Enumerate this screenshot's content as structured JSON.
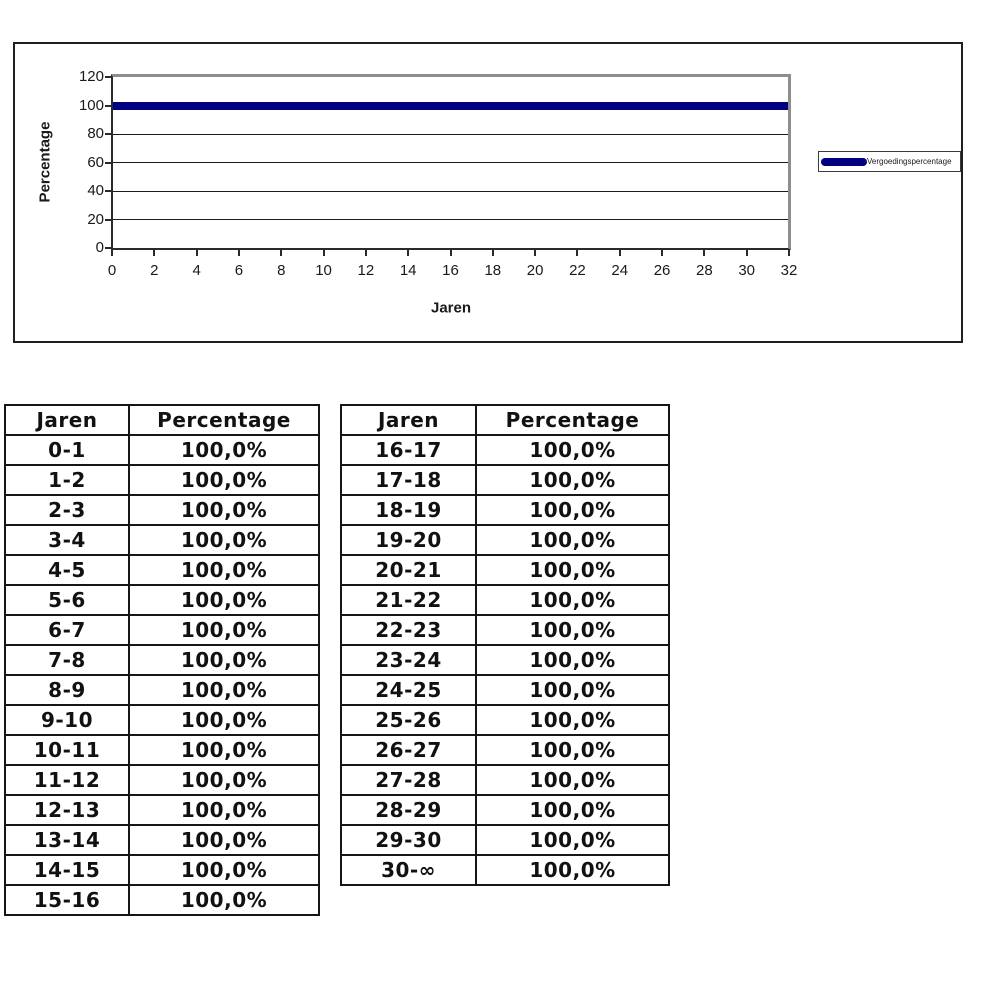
{
  "chart": {
    "legend_label": "Vergoedingspercentage",
    "series_color": "#000080",
    "frame_border_color": "#1f1f1f",
    "plot_shadow_border_color": "#8e8e8e"
  },
  "chart_data": {
    "type": "line",
    "title": "",
    "xlabel": "Jaren",
    "ylabel": "Percentage",
    "xlim": [
      0,
      32
    ],
    "ylim": [
      0,
      120
    ],
    "x_ticks": [
      0,
      2,
      4,
      6,
      8,
      10,
      12,
      14,
      16,
      18,
      20,
      22,
      24,
      26,
      28,
      30,
      32
    ],
    "y_ticks": [
      0,
      20,
      40,
      60,
      80,
      100,
      120
    ],
    "grid": true,
    "legend_position": "right",
    "series": [
      {
        "name": "Vergoedingspercentage",
        "color": "#000080",
        "x": [
          0,
          32
        ],
        "values": [
          100,
          100
        ]
      }
    ]
  },
  "tables": [
    {
      "headers": [
        "Jaren",
        "Percentage"
      ],
      "rows": [
        [
          "0-1",
          "100,0%"
        ],
        [
          "1-2",
          "100,0%"
        ],
        [
          "2-3",
          "100,0%"
        ],
        [
          "3-4",
          "100,0%"
        ],
        [
          "4-5",
          "100,0%"
        ],
        [
          "5-6",
          "100,0%"
        ],
        [
          "6-7",
          "100,0%"
        ],
        [
          "7-8",
          "100,0%"
        ],
        [
          "8-9",
          "100,0%"
        ],
        [
          "9-10",
          "100,0%"
        ],
        [
          "10-11",
          "100,0%"
        ],
        [
          "11-12",
          "100,0%"
        ],
        [
          "12-13",
          "100,0%"
        ],
        [
          "13-14",
          "100,0%"
        ],
        [
          "14-15",
          "100,0%"
        ],
        [
          "15-16",
          "100,0%"
        ]
      ]
    },
    {
      "headers": [
        "Jaren",
        "Percentage"
      ],
      "rows": [
        [
          "16-17",
          "100,0%"
        ],
        [
          "17-18",
          "100,0%"
        ],
        [
          "18-19",
          "100,0%"
        ],
        [
          "19-20",
          "100,0%"
        ],
        [
          "20-21",
          "100,0%"
        ],
        [
          "21-22",
          "100,0%"
        ],
        [
          "22-23",
          "100,0%"
        ],
        [
          "23-24",
          "100,0%"
        ],
        [
          "24-25",
          "100,0%"
        ],
        [
          "25-26",
          "100,0%"
        ],
        [
          "26-27",
          "100,0%"
        ],
        [
          "27-28",
          "100,0%"
        ],
        [
          "28-29",
          "100,0%"
        ],
        [
          "29-30",
          "100,0%"
        ],
        [
          "30-∞",
          "100,0%"
        ]
      ]
    }
  ]
}
